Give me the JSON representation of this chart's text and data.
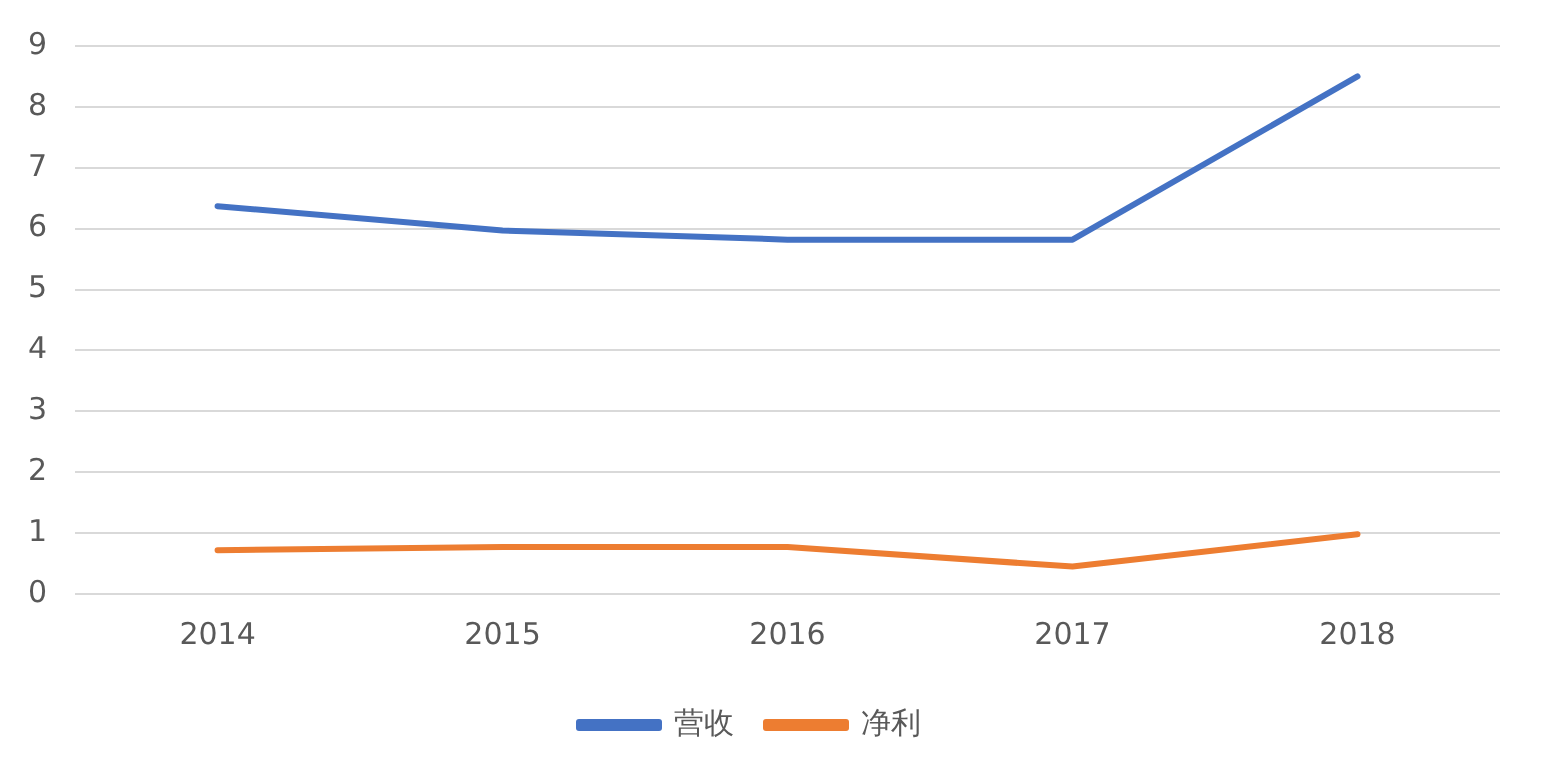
{
  "chart_data": {
    "type": "line",
    "categories": [
      "2014",
      "2015",
      "2016",
      "2017",
      "2018"
    ],
    "series": [
      {
        "name": "营收",
        "color": "#4472c4",
        "values": [
          6.37,
          5.97,
          5.82,
          5.82,
          8.5
        ]
      },
      {
        "name": "净利",
        "color": "#ed7d31",
        "values": [
          0.72,
          0.77,
          0.77,
          0.45,
          0.98
        ]
      }
    ],
    "ylim": [
      0,
      9
    ],
    "yticks": [
      0,
      1,
      2,
      3,
      4,
      5,
      6,
      7,
      8,
      9
    ],
    "grid": "y",
    "legend": "bottom",
    "marker": "none",
    "line_style": "solid"
  }
}
